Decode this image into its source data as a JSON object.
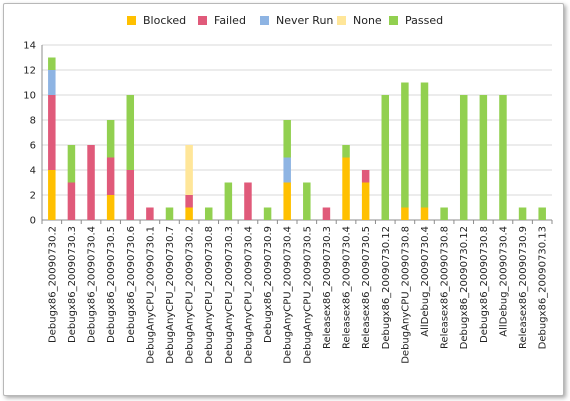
{
  "chart_data": {
    "type": "bar",
    "stacked": true,
    "title": "",
    "xlabel": "",
    "ylabel": "",
    "ylim": [
      0,
      14
    ],
    "yticks": [
      0,
      2,
      4,
      6,
      8,
      10,
      12,
      14
    ],
    "grid": true,
    "legend_position": "top",
    "categories": [
      "Debugx86_20090730.2",
      "Debugx86_20090730.3",
      "Debugx86_20090730.4",
      "Debugx86_20090730.5",
      "Debugx86_20090730.6",
      "DebugAnyCPU_20090730.1",
      "DebugAnyCPU_20090730.7",
      "DebugAnyCPU_20090730.2",
      "DebugAnyCPU_20090730.8",
      "DebugAnyCPU_20090730.3",
      "DebugAnyCPU_20090730.4",
      "Debugx86_20090730.9",
      "DebugAnyCPU_20090730.4",
      "DebugAnyCPU_20090730.5",
      "Releasex86_20090730.3",
      "Releasex86_20090730.4",
      "Releasex86_20090730.5",
      "Debugx86_20090730.12",
      "DebugAnyCPU_20090730.8",
      "AllDebug_20090730.4",
      "Releasex86_20090730.8",
      "Debugx86_20090730.12",
      "Debugx86_20090730.8",
      "AllDebug_20090730.4",
      "Releasex86_20090730.9",
      "Debugx86_20090730.13"
    ],
    "series": [
      {
        "name": "Blocked",
        "color": "#ffc000",
        "values": [
          4,
          0,
          0,
          2,
          0,
          0,
          0,
          1,
          0,
          0,
          0,
          0,
          3,
          0,
          0,
          5,
          3,
          0,
          1,
          1,
          0,
          0,
          0,
          0,
          0,
          0
        ]
      },
      {
        "name": "Failed",
        "color": "#e05a7a",
        "values": [
          6,
          3,
          6,
          3,
          4,
          1,
          0,
          1,
          0,
          0,
          3,
          0,
          0,
          0,
          1,
          0,
          1,
          0,
          0,
          0,
          0,
          0,
          0,
          0,
          0,
          0
        ]
      },
      {
        "name": "Never Run",
        "color": "#8eb4e3",
        "values": [
          2,
          0,
          0,
          0,
          0,
          0,
          0,
          0,
          0,
          0,
          0,
          0,
          2,
          0,
          0,
          0,
          0,
          0,
          0,
          0,
          0,
          0,
          0,
          0,
          0,
          0
        ]
      },
      {
        "name": "None",
        "color": "#ffe699",
        "values": [
          0,
          0,
          0,
          0,
          0,
          0,
          0,
          4,
          0,
          0,
          0,
          0,
          0,
          0,
          0,
          0,
          0,
          0,
          0,
          0,
          0,
          0,
          0,
          0,
          0,
          0
        ]
      },
      {
        "name": "Passed",
        "color": "#92d050",
        "values": [
          1,
          3,
          0,
          3,
          6,
          0,
          1,
          0,
          1,
          3,
          0,
          1,
          3,
          3,
          0,
          1,
          0,
          10,
          10,
          10,
          1,
          10,
          10,
          10,
          1,
          1
        ]
      }
    ]
  }
}
